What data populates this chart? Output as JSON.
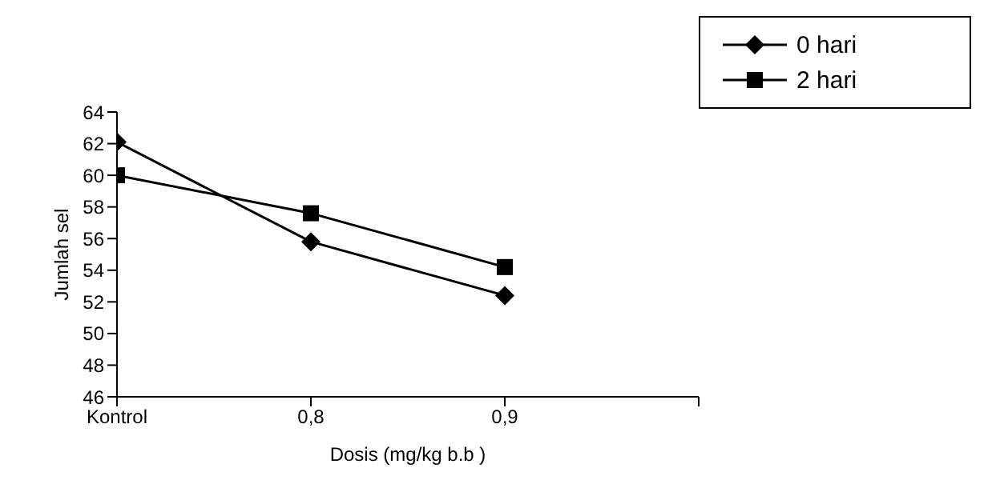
{
  "chart_data": {
    "type": "line",
    "xlabel": "Dosis (mg/kg b.b )",
    "ylabel": "Jumlah sel",
    "categories": [
      "Kontrol",
      "0,8",
      "0,9",
      null
    ],
    "series": [
      {
        "name": "0 hari",
        "color": "#000000",
        "marker": "diamond",
        "values": [
          62.1,
          55.8,
          52.4,
          null
        ]
      },
      {
        "name": "2 hari",
        "color": "#000000",
        "marker": "square",
        "values": [
          60.0,
          57.6,
          54.2,
          null
        ]
      }
    ],
    "ylim": [
      46,
      64
    ],
    "yticks": [
      46,
      48,
      50,
      52,
      54,
      56,
      58,
      60,
      62,
      64
    ],
    "grid": false,
    "legend": "top right",
    "line_style": "solid"
  }
}
